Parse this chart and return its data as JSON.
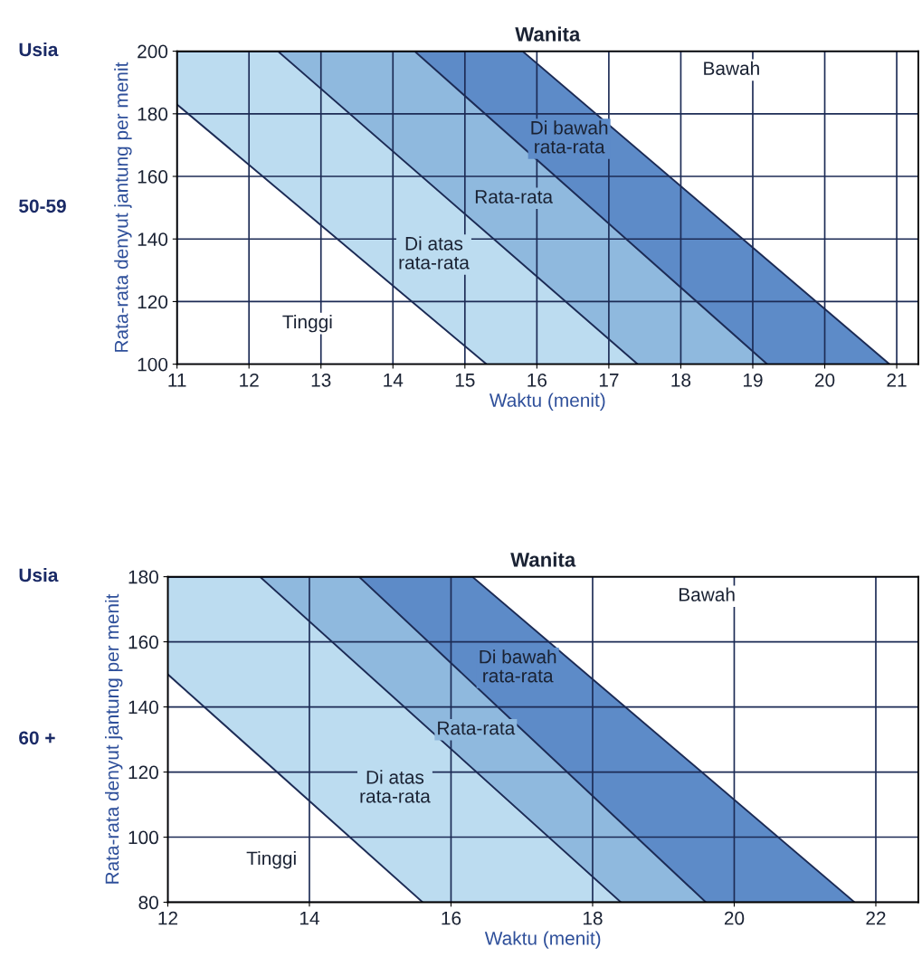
{
  "chart_data": [
    {
      "type": "area",
      "title": "Wanita",
      "xlabel": "Waktu (menit)",
      "ylabel": "Rata-rata denyut jantung per menit",
      "xlim": [
        11,
        21.3
      ],
      "ylim": [
        100,
        200
      ],
      "xticks": [
        11,
        12,
        13,
        14,
        15,
        16,
        17,
        18,
        19,
        20,
        21
      ],
      "yticks": [
        100,
        120,
        140,
        160,
        180,
        200
      ],
      "grid": true,
      "series": [
        {
          "color": "#ffffff",
          "x": [
            11,
            15.3
          ],
          "values": [
            183,
            100
          ]
        },
        {
          "color": "#bcdcf0",
          "x": [
            11,
            12.4,
            17.4
          ],
          "values": [
            200,
            200,
            100
          ]
        },
        {
          "color": "#8fb9de",
          "x": [
            11,
            14.3,
            19.2
          ],
          "values": [
            200,
            200,
            100
          ]
        },
        {
          "color": "#5d8bc8",
          "x": [
            11,
            15.8,
            20.9
          ],
          "values": [
            200,
            200,
            100
          ]
        }
      ],
      "annotations": [
        "Usia",
        "50-59",
        "Tinggi",
        "Di atas\nrata-rata",
        "Rata-rata",
        "Di bawah\nrata-rata",
        "Bawah"
      ]
    },
    {
      "type": "area",
      "title": "Wanita",
      "xlabel": "Waktu (menit)",
      "ylabel": "Rata-rata denyut jantung per menit",
      "xlim": [
        12,
        22.6
      ],
      "ylim": [
        80,
        180
      ],
      "xticks": [
        12,
        14,
        16,
        18,
        20,
        22
      ],
      "yticks": [
        80,
        100,
        120,
        140,
        160,
        180
      ],
      "grid": true,
      "series": [
        {
          "color": "#ffffff",
          "x": [
            12,
            15.6
          ],
          "values": [
            150,
            80
          ]
        },
        {
          "color": "#bcdcf0",
          "x": [
            12,
            13.3,
            18.4
          ],
          "values": [
            180,
            180,
            80
          ]
        },
        {
          "color": "#8fb9de",
          "x": [
            12,
            14.7,
            19.6
          ],
          "values": [
            180,
            180,
            80
          ]
        },
        {
          "color": "#5d8bc8",
          "x": [
            12,
            16.3,
            21.7
          ],
          "values": [
            180,
            180,
            80
          ]
        }
      ],
      "annotations": [
        "Usia",
        "60 +",
        "Tinggi",
        "Di atas\nrata-rata",
        "Rata-rata",
        "Di bawah\nrata-rata",
        "Bawah"
      ]
    }
  ]
}
